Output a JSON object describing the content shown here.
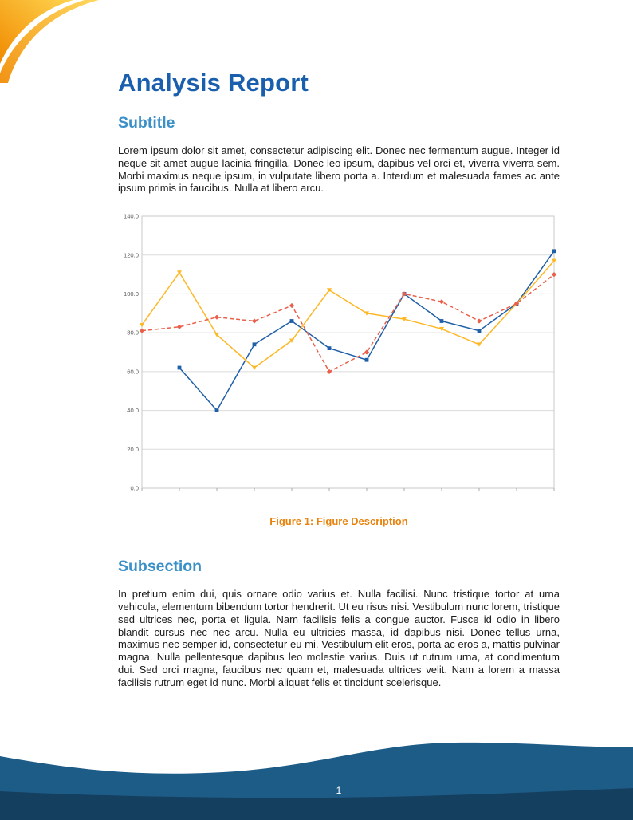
{
  "document": {
    "title": "Analysis Report",
    "page_number": "1"
  },
  "sections": [
    {
      "heading": "Subtitle",
      "body": "Lorem ipsum dolor sit amet, consectetur adipiscing elit. Donec nec fermentum augue. Integer id neque sit amet augue lacinia fringilla. Donec leo ipsum, dapibus vel orci et, viverra viverra sem. Morbi maximus neque ipsum, in vulputate libero porta a. Interdum et malesuada fames ac ante ipsum primis in faucibus. Nulla at libero arcu."
    },
    {
      "heading": "Subsection",
      "body": "In pretium enim dui, quis ornare odio varius et. Nulla facilisi. Nunc tristique tortor at urna vehicula, elementum bibendum tortor hendrerit. Ut eu risus nisi. Vestibulum nunc lorem, tristique sed ultrices nec, porta et ligula. Nam facilisis felis a congue auctor. Fusce id odio in libero blandit cursus nec nec arcu. Nulla eu ultricies massa, id dapibus nisi. Donec tellus urna, maximus nec semper id, consectetur eu mi. Vestibulum elit eros, porta ac eros a, mattis pulvinar magna. Nulla pellentesque dapibus leo molestie varius. Duis ut rutrum urna, at condimentum dui. Sed orci magna, faucibus nec quam et, malesuada ultrices velit. Nam a lorem a massa facilisis rutrum eget id nunc. Morbi aliquet felis et tincidunt scelerisque."
    }
  ],
  "figure": {
    "caption_label": "Figure 1:",
    "caption_text": "Figure Description"
  },
  "colors": {
    "title": "#1a5fad",
    "section_heading": "#3b90c8",
    "caption": "#e8820c",
    "corner_orange": "#f08a00",
    "corner_yellow": "#ffd44f",
    "footer_main": "#1e5c88",
    "footer_dark": "#153f5f"
  },
  "chart_data": {
    "type": "line",
    "title": "",
    "xlabel": "",
    "ylabel": "",
    "x": [
      1,
      2,
      3,
      4,
      5,
      6,
      7,
      8,
      9,
      10,
      11,
      12
    ],
    "ylim": [
      0,
      140
    ],
    "ytick_step": 20,
    "ytick_labels": [
      "0.0",
      "20.0",
      "40.0",
      "60.0",
      "80.0",
      "100.0",
      "120.0",
      "140.0"
    ],
    "grid": "horizontal",
    "legend": "none",
    "series": [
      {
        "name": "series-blue",
        "color": "#1f5fa8",
        "marker": "square",
        "line": "solid",
        "values": [
          null,
          62,
          40,
          74,
          86,
          72,
          66,
          100,
          86,
          81,
          95,
          122
        ]
      },
      {
        "name": "series-yellow",
        "color": "#fdb826",
        "marker": "triangle-down",
        "line": "solid",
        "values": [
          84,
          111,
          79,
          62,
          76,
          102,
          90,
          87,
          82,
          74,
          95,
          117
        ]
      },
      {
        "name": "series-red",
        "color": "#e8604a",
        "marker": "diamond",
        "line": "dashed",
        "values": [
          81,
          83,
          88,
          86,
          94,
          60,
          70,
          100,
          96,
          86,
          95,
          110
        ]
      }
    ]
  }
}
